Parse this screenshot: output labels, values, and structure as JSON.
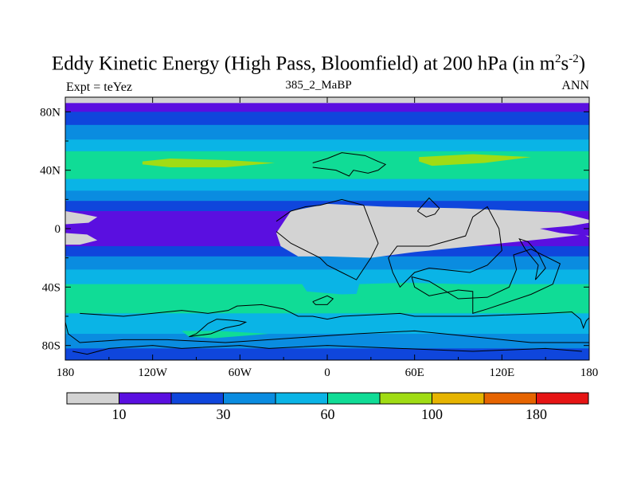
{
  "chart_data": {
    "type": "heatmap",
    "title": "Eddy Kinetic Energy (High Pass, Bloomfield) at 200 hPa (in m",
    "title_units": {
      "sup1": "2",
      "mid": "s",
      "sup2": "-2",
      "close": ")"
    },
    "subtitle": "385_2_MaBP",
    "left_label": "Expt = teYez",
    "right_label": "ANN",
    "x_ticks": [
      {
        "v": -180,
        "label": "180"
      },
      {
        "v": -120,
        "label": "120W"
      },
      {
        "v": -60,
        "label": "60W"
      },
      {
        "v": 0,
        "label": "0"
      },
      {
        "v": 60,
        "label": "60E"
      },
      {
        "v": 120,
        "label": "120E"
      },
      {
        "v": 180,
        "label": "180"
      }
    ],
    "y_ticks": [
      {
        "v": 80,
        "label": "80N"
      },
      {
        "v": 40,
        "label": "40N"
      },
      {
        "v": 0,
        "label": "0"
      },
      {
        "v": -40,
        "label": "40S"
      },
      {
        "v": -80,
        "label": "80S"
      }
    ],
    "xlim": [
      -180,
      180
    ],
    "ylim": [
      -90,
      90
    ],
    "colorbar": {
      "colors": [
        "#d3d3d3",
        "#5a0fe0",
        "#0f46dc",
        "#0a8ce0",
        "#0ab4e6",
        "#10dc96",
        "#a0dc14",
        "#e6b400",
        "#e66400",
        "#e61414"
      ],
      "labels": [
        {
          "after_box": 1,
          "text": "10"
        },
        {
          "after_box": 3,
          "text": "30"
        },
        {
          "after_box": 5,
          "text": "60"
        },
        {
          "after_box": 7,
          "text": "100"
        },
        {
          "after_box": 9,
          "text": "180"
        }
      ]
    },
    "lat_bands": [
      {
        "from": 90,
        "to": 86,
        "level": 0
      },
      {
        "from": 86,
        "to": 80,
        "level": 1
      },
      {
        "from": 80,
        "to": 71,
        "level": 2
      },
      {
        "from": 71,
        "to": 61,
        "level": 3
      },
      {
        "from": 61,
        "to": 53,
        "level": 4
      },
      {
        "from": 53,
        "to": 34,
        "level": 5
      },
      {
        "from": 34,
        "to": 26,
        "level": 4
      },
      {
        "from": 26,
        "to": 19,
        "level": 3
      },
      {
        "from": 19,
        "to": 12,
        "level": 2
      },
      {
        "from": 12,
        "to": -12,
        "level": 1
      },
      {
        "from": -12,
        "to": -19,
        "level": 2
      },
      {
        "from": -19,
        "to": -28,
        "level": 3
      },
      {
        "from": -28,
        "to": -38,
        "level": 4
      },
      {
        "from": -38,
        "to": -58,
        "level": 5
      },
      {
        "from": -58,
        "to": -72,
        "level": 4
      },
      {
        "from": -72,
        "to": -82,
        "level": 3
      },
      {
        "from": -82,
        "to": -90,
        "level": 2
      }
    ],
    "patches": [
      {
        "level": 0,
        "poly": [
          [
            -35,
            -3
          ],
          [
            -25,
            12
          ],
          [
            0,
            17
          ],
          [
            40,
            15
          ],
          [
            90,
            14
          ],
          [
            160,
            11
          ],
          [
            176,
            7
          ],
          [
            180,
            6
          ],
          [
            180,
            -6
          ],
          [
            176,
            -4
          ],
          [
            150,
            -7
          ],
          [
            120,
            -10
          ],
          [
            60,
            -16
          ],
          [
            30,
            -20
          ],
          [
            0,
            -19
          ],
          [
            -20,
            -19
          ],
          [
            -32,
            -12
          ]
        ]
      },
      {
        "level": 0,
        "poly": [
          [
            -180,
            12
          ],
          [
            -168,
            10
          ],
          [
            -158,
            8
          ],
          [
            -164,
            4
          ],
          [
            -180,
            3
          ]
        ]
      },
      {
        "level": 0,
        "poly": [
          [
            -180,
            -3
          ],
          [
            -165,
            -4
          ],
          [
            -158,
            -8
          ],
          [
            -170,
            -11
          ],
          [
            -180,
            -11
          ]
        ]
      },
      {
        "level": 1,
        "poly": [
          [
            180,
            4
          ],
          [
            168,
            2
          ],
          [
            146,
            0
          ],
          [
            160,
            -3
          ],
          [
            180,
            -5
          ]
        ]
      },
      {
        "level": 6,
        "poly": [
          [
            -127,
            46
          ],
          [
            -108,
            48
          ],
          [
            -70,
            47
          ],
          [
            -36,
            45
          ],
          [
            -70,
            42
          ],
          [
            -108,
            42
          ],
          [
            -127,
            44
          ]
        ]
      },
      {
        "level": 6,
        "poly": [
          [
            63,
            49
          ],
          [
            100,
            51
          ],
          [
            140,
            49
          ],
          [
            108,
            45
          ],
          [
            72,
            43
          ],
          [
            63,
            46
          ]
        ]
      },
      {
        "level": 4,
        "poly": [
          [
            -18,
            -37
          ],
          [
            20,
            -38
          ],
          [
            45,
            -36
          ],
          [
            50,
            -39
          ],
          [
            44,
            -44
          ],
          [
            10,
            -45
          ],
          [
            -14,
            -43
          ]
        ]
      },
      {
        "level": 5,
        "poly": [
          [
            22,
            -38
          ],
          [
            55,
            -37
          ],
          [
            92,
            -38
          ],
          [
            80,
            -47
          ],
          [
            55,
            -52
          ],
          [
            32,
            -50
          ],
          [
            20,
            -45
          ]
        ]
      },
      {
        "level": 5,
        "poly": [
          [
            -100,
            -70
          ],
          [
            -75,
            -70
          ],
          [
            -40,
            -72
          ],
          [
            -78,
            -75
          ],
          [
            -95,
            -74
          ]
        ]
      }
    ],
    "coastlines": [
      [
        [
          -10,
          45
        ],
        [
          0,
          48
        ],
        [
          10,
          52
        ],
        [
          26,
          50
        ],
        [
          35,
          46
        ],
        [
          40,
          44
        ],
        [
          35,
          40
        ],
        [
          28,
          38
        ],
        [
          18,
          40
        ],
        [
          15,
          36
        ],
        [
          6,
          40
        ],
        [
          -10,
          42
        ]
      ],
      [
        [
          62,
          12
        ],
        [
          70,
          21
        ],
        [
          77,
          14
        ],
        [
          74,
          10
        ],
        [
          68,
          8
        ],
        [
          62,
          12
        ]
      ],
      [
        [
          -35,
          5
        ],
        [
          -25,
          12
        ],
        [
          -15,
          15
        ],
        [
          -5,
          16
        ],
        [
          10,
          20
        ],
        [
          25,
          16
        ],
        [
          35,
          -10
        ],
        [
          30,
          -20
        ],
        [
          20,
          -35
        ],
        [
          10,
          -30
        ],
        [
          0,
          -25
        ],
        [
          -5,
          -20
        ],
        [
          -25,
          -10
        ],
        [
          -35,
          -2
        ]
      ],
      [
        [
          100,
          8
        ],
        [
          110,
          15
        ],
        [
          118,
          0
        ],
        [
          120,
          -15
        ],
        [
          110,
          -25
        ],
        [
          98,
          -30
        ],
        [
          80,
          -28
        ],
        [
          70,
          -27
        ],
        [
          60,
          -30
        ],
        [
          50,
          -40
        ],
        [
          45,
          -30
        ],
        [
          42,
          -20
        ],
        [
          48,
          -12
        ],
        [
          70,
          -12
        ],
        [
          95,
          -5
        ],
        [
          100,
          8
        ]
      ],
      [
        [
          58,
          -33
        ],
        [
          70,
          -36
        ],
        [
          90,
          -48
        ],
        [
          110,
          -47
        ],
        [
          125,
          -40
        ],
        [
          130,
          -28
        ],
        [
          128,
          -18
        ],
        [
          140,
          -14
        ],
        [
          160,
          -24
        ],
        [
          155,
          -38
        ],
        [
          140,
          -45
        ],
        [
          125,
          -50
        ],
        [
          110,
          -55
        ],
        [
          100,
          -58
        ],
        [
          100,
          -43
        ],
        [
          90,
          -42
        ],
        [
          70,
          -46
        ],
        [
          60,
          -40
        ],
        [
          58,
          -33
        ]
      ],
      [
        [
          143,
          -35
        ],
        [
          150,
          -27
        ],
        [
          145,
          -17
        ],
        [
          138,
          -9
        ],
        [
          132,
          -7
        ],
        [
          136,
          -14
        ],
        [
          145,
          -25
        ],
        [
          143,
          -35
        ]
      ],
      [
        [
          -170,
          -58
        ],
        [
          -140,
          -60
        ],
        [
          -100,
          -56
        ],
        [
          -82,
          -58
        ],
        [
          -68,
          -56
        ],
        [
          -62,
          -53
        ],
        [
          -45,
          -52
        ],
        [
          -30,
          -55
        ],
        [
          -20,
          -60
        ],
        [
          -10,
          -60
        ],
        [
          0,
          -62
        ],
        [
          10,
          -60
        ],
        [
          50,
          -58
        ],
        [
          60,
          -60
        ],
        [
          100,
          -60
        ],
        [
          150,
          -58
        ],
        [
          168,
          -57
        ],
        [
          174,
          -62
        ],
        [
          176,
          -68
        ],
        [
          178,
          -63
        ],
        [
          180,
          -61
        ]
      ],
      [
        [
          -180,
          -64
        ],
        [
          -178,
          -72
        ],
        [
          -170,
          -78
        ],
        [
          -140,
          -76
        ],
        [
          -110,
          -76
        ],
        [
          -70,
          -78
        ],
        [
          -40,
          -76
        ],
        [
          -10,
          -74
        ],
        [
          20,
          -72
        ],
        [
          60,
          -70
        ],
        [
          100,
          -74
        ],
        [
          140,
          -78
        ],
        [
          180,
          -78
        ]
      ],
      [
        [
          -76,
          -62
        ],
        [
          -82,
          -65
        ],
        [
          -90,
          -72
        ],
        [
          -95,
          -74
        ],
        [
          -80,
          -72
        ],
        [
          -70,
          -68
        ],
        [
          -60,
          -66
        ],
        [
          -56,
          -64
        ],
        [
          -62,
          -63
        ],
        [
          -76,
          -62
        ]
      ],
      [
        [
          -175,
          -84
        ],
        [
          -165,
          -86
        ],
        [
          -150,
          -82
        ],
        [
          -120,
          -80
        ],
        [
          -100,
          -82
        ],
        [
          -60,
          -80
        ],
        [
          -40,
          -82
        ],
        [
          0,
          -80
        ],
        [
          50,
          -82
        ],
        [
          100,
          -84
        ],
        [
          150,
          -82
        ],
        [
          175,
          -84
        ]
      ],
      [
        [
          -10,
          -50
        ],
        [
          -5,
          -48
        ],
        [
          0,
          -46
        ],
        [
          4,
          -48
        ],
        [
          0,
          -52
        ],
        [
          -8,
          -52
        ],
        [
          -10,
          -50
        ]
      ]
    ]
  }
}
